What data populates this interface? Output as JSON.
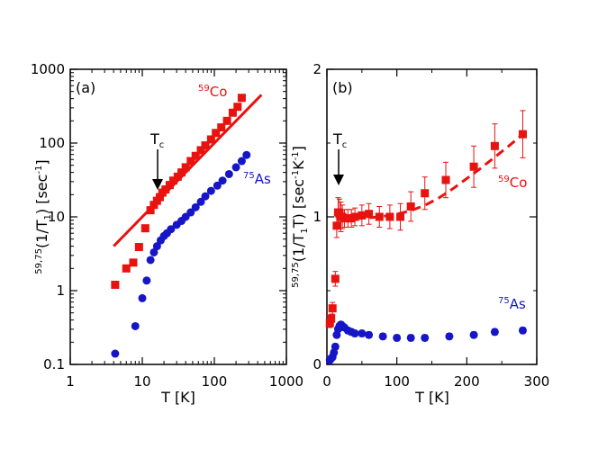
{
  "figure": {
    "colors": {
      "red": "#e8120f",
      "blue": "#1616c8",
      "axis": "#000000"
    }
  },
  "chart_data": [
    {
      "type": "scatter",
      "panel_label": "(a)",
      "xscale": "log",
      "yscale": "log",
      "xlim": [
        1,
        1000
      ],
      "ylim": [
        0.1,
        1000
      ],
      "x_ticks": [
        1,
        10,
        100,
        1000
      ],
      "x_tick_labels": [
        "1",
        "10",
        "100",
        "1000"
      ],
      "y_ticks": [
        0.1,
        1,
        10,
        100,
        1000
      ],
      "y_tick_labels": [
        "0.1",
        "1",
        "10",
        "100",
        "1000"
      ],
      "xlabel": "T [K]",
      "ylabel": {
        "sup": "59,75",
        "main": "(1/T",
        "sub": "1",
        "tail": ") [sec",
        "sup2": "-1",
        "end": "]"
      },
      "annotation": {
        "text": "T",
        "sub": "c",
        "x": 17
      },
      "series": [
        {
          "name": "59Co",
          "label_sup": "59",
          "label_main": "Co",
          "color": "#e8120f",
          "marker": "square",
          "x": [
            4.2,
            6,
            7.5,
            9,
            11,
            13,
            14.5,
            16,
            17.5,
            19,
            21,
            24,
            27,
            31,
            35,
            40,
            47,
            55,
            65,
            75,
            90,
            105,
            125,
            150,
            180,
            210,
            240
          ],
          "y": [
            1.2,
            2.0,
            2.4,
            3.9,
            7.0,
            12.3,
            14.5,
            16.5,
            18.5,
            21.3,
            23.5,
            27.0,
            31.0,
            35.0,
            40.0,
            47.0,
            57.0,
            67.0,
            80.0,
            93.0,
            112.0,
            137.0,
            163.0,
            200.0,
            258.0,
            310.0,
            410.0
          ],
          "fit_line": {
            "style": "solid",
            "x": [
              4,
              450
            ],
            "y": [
              4,
              450
            ]
          }
        },
        {
          "name": "75As",
          "label_sup": "75",
          "label_main": "As",
          "color": "#1616c8",
          "marker": "circle",
          "x": [
            4.2,
            8,
            10,
            11.5,
            13,
            14.5,
            16,
            18,
            20,
            22,
            25,
            30,
            35,
            40,
            47,
            55,
            65,
            75,
            90,
            110,
            130,
            160,
            200,
            240,
            280
          ],
          "y": [
            0.14,
            0.33,
            0.79,
            1.37,
            2.6,
            3.3,
            4.0,
            4.8,
            5.5,
            6.0,
            6.8,
            7.8,
            8.8,
            10.0,
            11.5,
            13.5,
            16.0,
            19.0,
            22.5,
            26.5,
            31.0,
            38.0,
            47.0,
            57.0,
            69.0
          ]
        }
      ]
    },
    {
      "type": "scatter",
      "panel_label": "(b)",
      "xscale": "linear",
      "yscale": "linear",
      "xlim": [
        0,
        300
      ],
      "ylim": [
        0,
        2
      ],
      "x_ticks": [
        0,
        100,
        200,
        300
      ],
      "x_tick_labels": [
        "0",
        "100",
        "200",
        "300"
      ],
      "y_ticks": [
        0,
        1,
        2
      ],
      "y_tick_labels": [
        "0",
        "1",
        "2"
      ],
      "xlabel": "T [K]",
      "ylabel": {
        "sup": "59,75",
        "main": "(1/T",
        "sub": "1",
        "tail": "T) [sec",
        "sup2": "-1",
        "end": "K",
        "sup3": "-1",
        "end2": "]"
      },
      "annotation": {
        "text": "T",
        "sub": "c",
        "x": 17
      },
      "series": [
        {
          "name": "59Co",
          "label_sup": "59",
          "label_main": "Co",
          "color": "#e8120f",
          "marker": "square",
          "x": [
            4.2,
            6,
            8,
            12,
            14,
            16,
            18,
            20,
            22,
            25,
            30,
            35,
            40,
            50,
            60,
            75,
            90,
            105,
            120,
            140,
            170,
            210,
            240,
            280
          ],
          "y": [
            0.28,
            0.31,
            0.38,
            0.58,
            0.94,
            1.03,
            1.02,
            1.0,
            1.0,
            0.99,
            0.99,
            0.99,
            1.0,
            1.01,
            1.02,
            1.0,
            1.0,
            1.0,
            1.07,
            1.16,
            1.25,
            1.34,
            1.48,
            1.56
          ],
          "err": [
            0.03,
            0.03,
            0.04,
            0.05,
            0.08,
            0.1,
            0.1,
            0.1,
            0.08,
            0.06,
            0.06,
            0.06,
            0.06,
            0.07,
            0.07,
            0.07,
            0.08,
            0.09,
            0.1,
            0.11,
            0.12,
            0.14,
            0.15,
            0.16
          ],
          "fit_line": {
            "style": "dashed",
            "x": [
              20,
              40,
              60,
              80,
              100,
              120,
              140,
              160,
              180,
              200,
              220,
              240,
              260,
              280
            ],
            "y": [
              0.985,
              0.987,
              0.993,
              1.003,
              1.018,
              1.042,
              1.078,
              1.128,
              1.19,
              1.26,
              1.33,
              1.405,
              1.48,
              1.56
            ]
          }
        },
        {
          "name": "75As",
          "label_sup": "75",
          "label_main": "As",
          "color": "#1616c8",
          "marker": "circle",
          "x": [
            4.2,
            6,
            8,
            10,
            12,
            14,
            16,
            18,
            20,
            22,
            25,
            30,
            35,
            40,
            50,
            60,
            80,
            100,
            120,
            140,
            175,
            210,
            240,
            280
          ],
          "y": [
            0.03,
            0.04,
            0.05,
            0.08,
            0.12,
            0.2,
            0.24,
            0.26,
            0.27,
            0.26,
            0.25,
            0.23,
            0.22,
            0.21,
            0.21,
            0.2,
            0.19,
            0.18,
            0.18,
            0.18,
            0.19,
            0.2,
            0.22,
            0.23
          ],
          "err": [
            0.02,
            0.02,
            0.02,
            0.02,
            0.02,
            0.02,
            0.02,
            0.02,
            0.02,
            0.02,
            0.02,
            0.02,
            0.02,
            0.02,
            0.02,
            0.02,
            0.02,
            0.02,
            0.02,
            0.02,
            0.02,
            0.02,
            0.02,
            0.02
          ]
        }
      ]
    }
  ]
}
